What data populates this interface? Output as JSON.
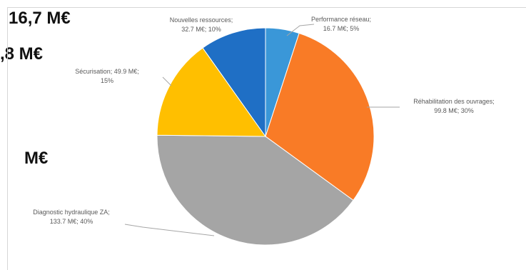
{
  "background_text": {
    "line1": "16,7 M€",
    "line2": ",8 M€",
    "line3": "M€"
  },
  "chart_data": {
    "type": "pie",
    "title": "",
    "start_angle_deg": 0,
    "direction": "clockwise",
    "slices": [
      {
        "label": "Performance réseau",
        "value": 16.7,
        "percent": 5,
        "color": "#3a97d8",
        "text_lines": [
          "Performance réseau;",
          "16.7 M€; 5%"
        ]
      },
      {
        "label": "Réhabilitation des ouvrages",
        "value": 99.8,
        "percent": 30,
        "color": "#f97b26",
        "text_lines": [
          "Réhabilitation des ouvrages;",
          "99.8 M€; 30%"
        ]
      },
      {
        "label": "Diagnostic hydraulique ZA",
        "value": 133.7,
        "percent": 40,
        "color": "#a5a5a5",
        "text_lines": [
          "Diagnostic hydraulique ZA;",
          "133.7 M€; 40%"
        ]
      },
      {
        "label": "Sécurisation",
        "value": 49.9,
        "percent": 15,
        "color": "#ffbf00",
        "text_lines": [
          "Sécurisation; 49.9 M€;",
          "15%"
        ]
      },
      {
        "label": "Nouvelles ressources",
        "value": 32.7,
        "percent": 10,
        "color": "#1f6fc5",
        "text_lines": [
          "Nouvelles ressources;",
          "32.7 M€; 10%"
        ]
      }
    ]
  }
}
